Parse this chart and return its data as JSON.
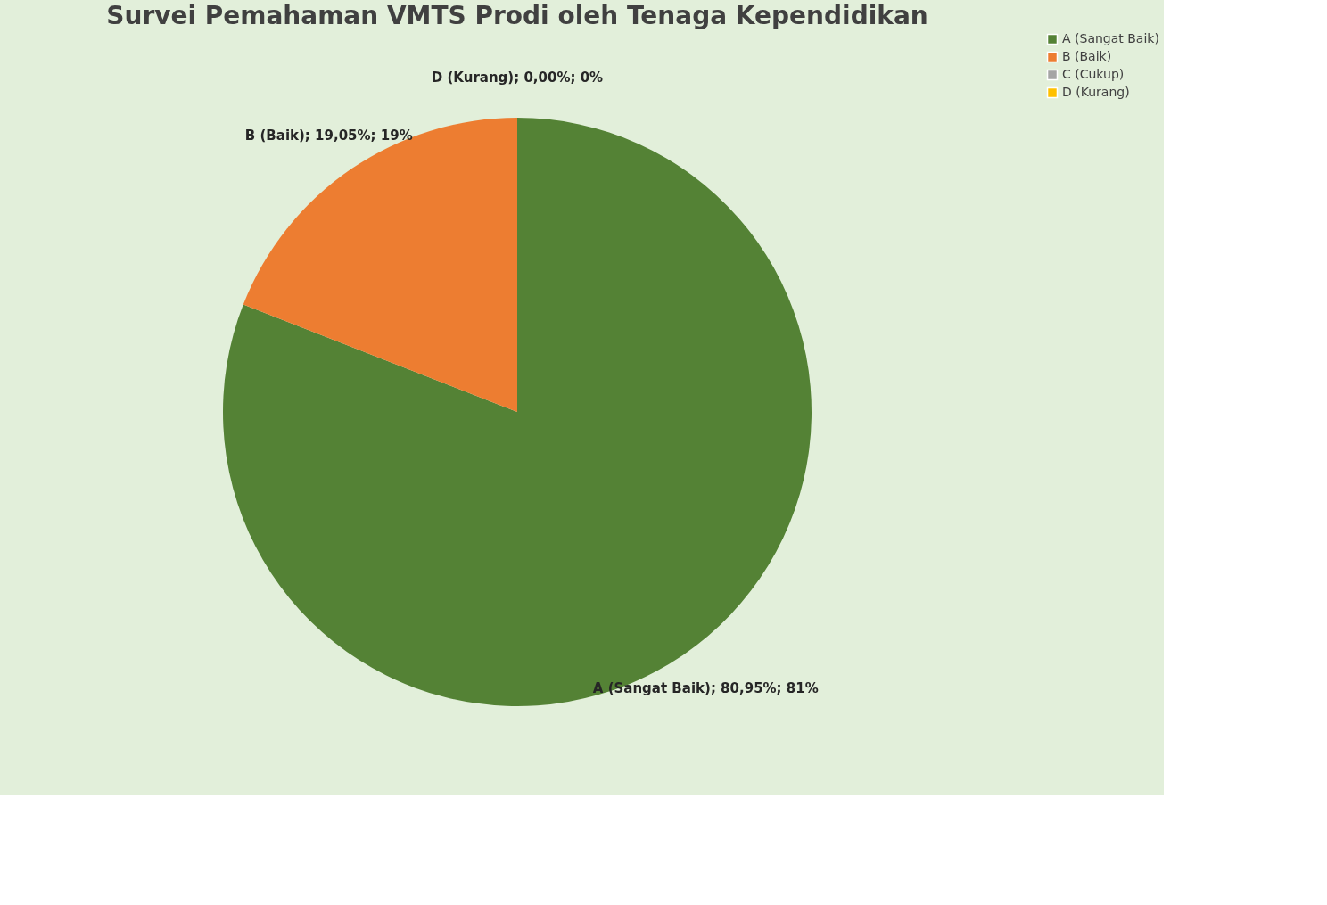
{
  "chart_data": {
    "type": "pie",
    "title": "Survei Pemahaman VMTS Prodi oleh Tenaga Kependidikan",
    "categories": [
      "A (Sangat Baik)",
      "B (Baik)",
      "C (Cukup)",
      "D (Kurang)"
    ],
    "values": [
      80.95,
      19.05,
      0,
      0
    ],
    "colors": [
      "#548235",
      "#ed7d31",
      "#a5a5a5",
      "#ffc000"
    ],
    "value_labels": [
      "A (Sangat Baik); 80,95%; 81%",
      "B (Baik); 19,05%; 19%",
      null,
      "D (Kurang); 0,00%; 0%"
    ],
    "legend": "right"
  }
}
